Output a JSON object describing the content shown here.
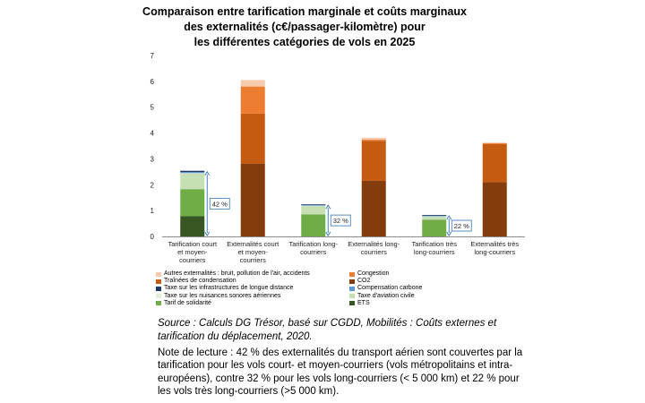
{
  "chart_data": {
    "type": "bar",
    "stacked": true,
    "title_lines": [
      "Comparaison entre tarification marginale et coûts marginaux",
      "des externalités (c€/passager-kilomètre) pour",
      "les différentes catégories de vols en 2025"
    ],
    "ylim": [
      0,
      7
    ],
    "yticks": [
      "0",
      "1",
      "2",
      "3",
      "4",
      "5",
      "6",
      "7"
    ],
    "categories": [
      [
        "Tarification court",
        "et moyen-",
        "courriers"
      ],
      [
        "Externalités court",
        "et moyen-",
        "courriers"
      ],
      [
        "Tarification long-",
        "courriers"
      ],
      [
        "Externalités long-",
        "courriers"
      ],
      [
        "Tarification très",
        "long-courriers"
      ],
      [
        "Externalités très",
        "long-courriers"
      ]
    ],
    "series": [
      {
        "name": "ETS",
        "color": "#375623",
        "values": [
          0.78,
          0,
          0,
          0,
          0,
          0
        ]
      },
      {
        "name": "Tarif de solidarité",
        "color": "#70ad47",
        "values": [
          1.05,
          0,
          0.85,
          0,
          0.65,
          0
        ]
      },
      {
        "name": "Taxe d'aviation civile",
        "color": "#c6e0b4",
        "values": [
          0.6,
          0,
          0.33,
          0,
          0.12,
          0
        ]
      },
      {
        "name": "Taxe sur les nuisances sonores aériennes",
        "color": "#e2efda",
        "values": [
          0.02,
          0,
          0.01,
          0,
          0.01,
          0
        ]
      },
      {
        "name": "Compensation carbone",
        "color": "#5b9bd5",
        "values": [
          0.04,
          0,
          0.02,
          0,
          0.02,
          0
        ]
      },
      {
        "name": "Taxe sur les infrastructures de longue distance",
        "color": "#1f3864",
        "values": [
          0.05,
          0,
          0.03,
          0,
          0.03,
          0
        ]
      },
      {
        "name": "CO2",
        "color": "#843c0c",
        "values": [
          0,
          2.82,
          0,
          2.15,
          0,
          2.1
        ]
      },
      {
        "name": "Traînées de condensation",
        "color": "#c55a11",
        "values": [
          0,
          1.93,
          0,
          1.55,
          0,
          1.48
        ]
      },
      {
        "name": "Congestion",
        "color": "#ed7d31",
        "values": [
          0,
          1.05,
          0,
          0.05,
          0,
          0.03
        ]
      },
      {
        "name": "Autres externalités : bruit, pollution de l'air, accidents",
        "color": "#f8cbad",
        "values": [
          0,
          0.25,
          0,
          0.07,
          0,
          0.02
        ]
      }
    ],
    "annotations": [
      {
        "label": "42 %",
        "between": [
          0,
          1
        ]
      },
      {
        "label": "32 %",
        "between": [
          2,
          3
        ]
      },
      {
        "label": "22 %",
        "between": [
          4,
          5
        ]
      }
    ]
  },
  "legend": [
    [
      "Autres externalités : bruit, pollution de l'air, accidents",
      "Congestion"
    ],
    [
      "Traînées de condensation",
      "CO2"
    ],
    [
      "Taxe sur les infrastructures de longue distance",
      "Compensation carbone"
    ],
    [
      "Taxe sur les nuisances sonores aériennes",
      "Taxe d'aviation civile"
    ],
    [
      "Tarif de solidarité",
      "ETS"
    ]
  ],
  "source_lines": [
    "Source : Calculs DG Trésor, basé sur CGDD, Mobilités : Coûts externes et",
    "tarification du déplacement, 2020."
  ],
  "note_lines": [
    "Note de lecture : 42 % des externalités du transport aérien sont couvertes par la",
    "tarification pour les vols court- et moyen-courriers (vols métropolitains et intra-",
    "européens), contre 32 % pour les vols long-courriers (< 5 000 km) et 22 % pour",
    "les vols très long-courriers (>5 000 km)."
  ]
}
